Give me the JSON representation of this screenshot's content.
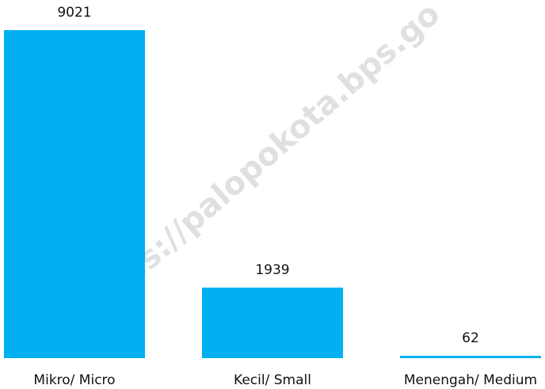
{
  "chart_data": {
    "type": "bar",
    "categories": [
      "Mikro/ Micro",
      "Kecil/ Small",
      "Menengah/ Medium"
    ],
    "values": [
      9021,
      1939,
      62
    ],
    "color": "#00b0f0",
    "watermark": "https://palopokota.bps.go"
  }
}
